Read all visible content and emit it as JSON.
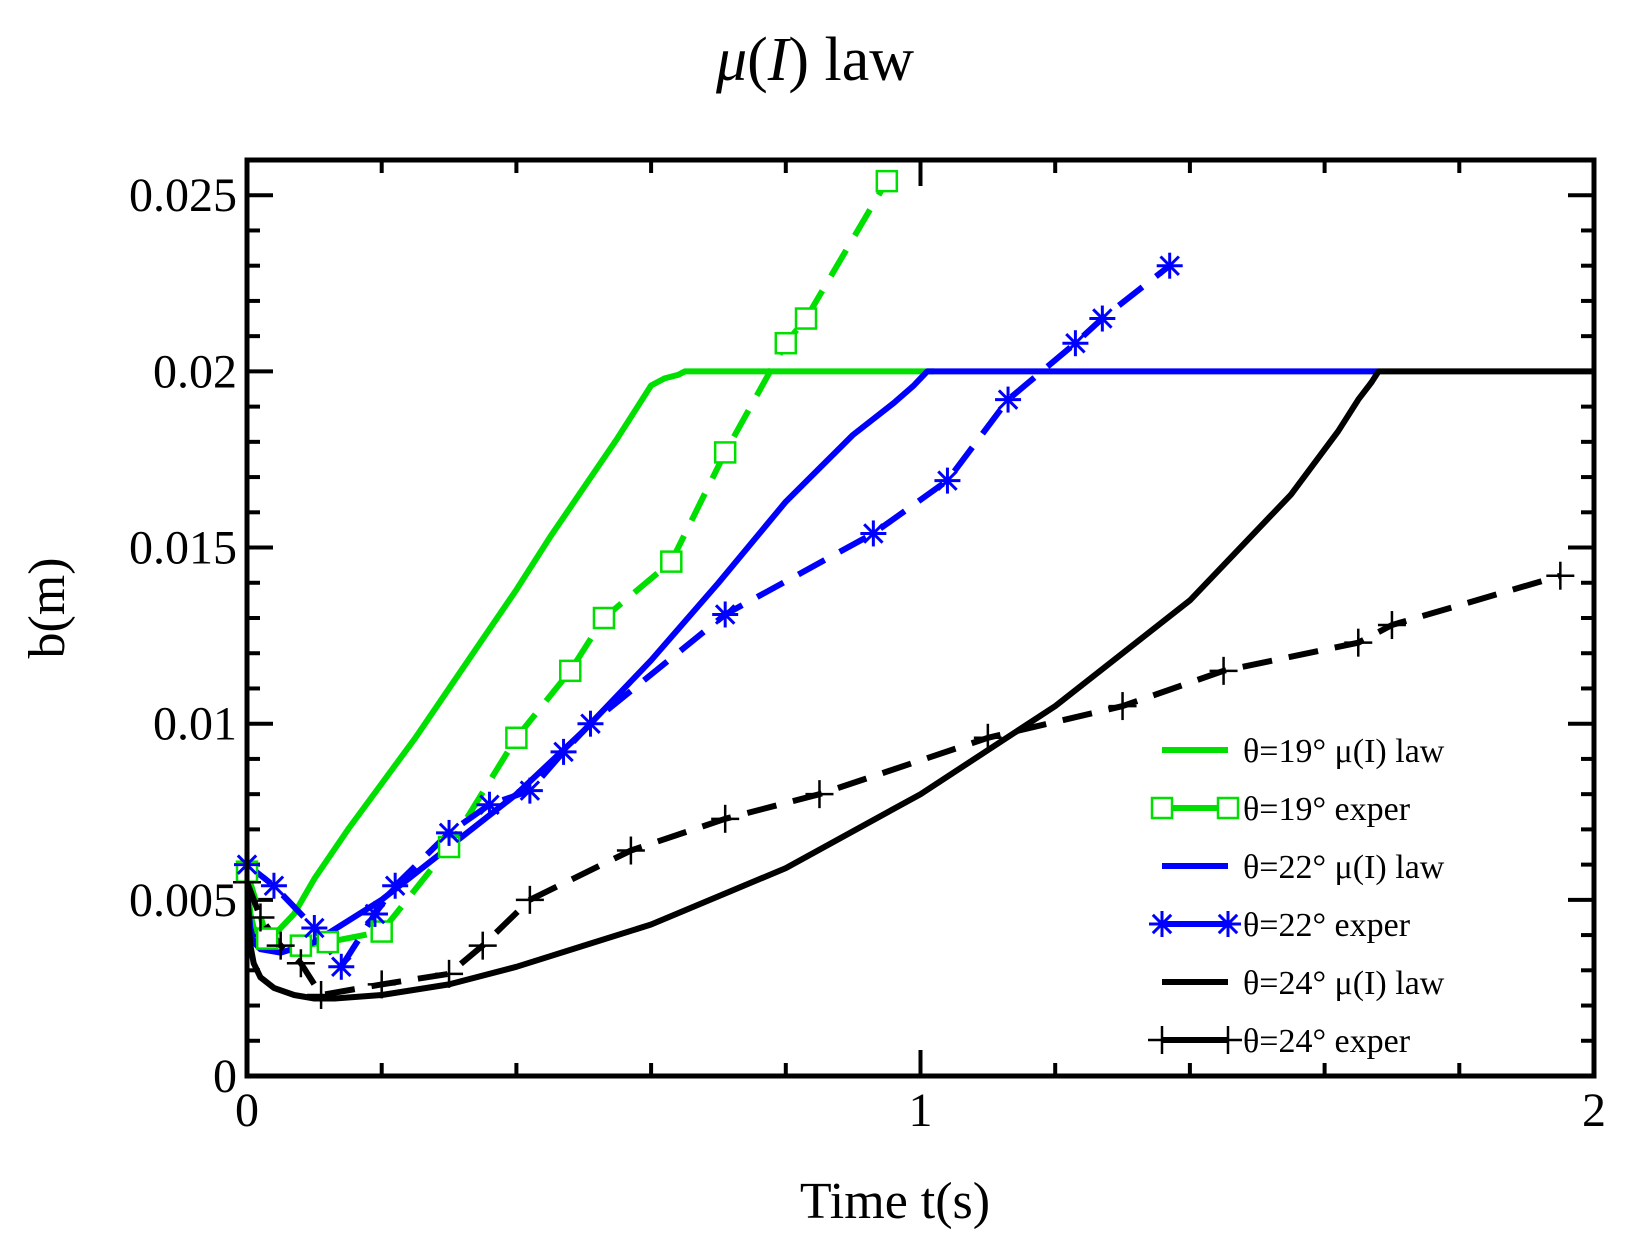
{
  "chart_data": {
    "type": "line",
    "title": "μ(I) law",
    "title_parts": [
      "μ",
      "(",
      "I",
      ")",
      " law"
    ],
    "xlabel": "Time t(s)",
    "ylabel": "b(m)",
    "xlim": [
      0,
      2
    ],
    "ylim": [
      0,
      0.026
    ],
    "xticks": [
      {
        "value": 0,
        "label": "0"
      },
      {
        "value": 1,
        "label": "1"
      },
      {
        "value": 2,
        "label": "2"
      }
    ],
    "yticks": [
      {
        "value": 0,
        "label": "0"
      },
      {
        "value": 0.005,
        "label": "0.005"
      },
      {
        "value": 0.01,
        "label": "0.01"
      },
      {
        "value": 0.015,
        "label": "0.015"
      },
      {
        "value": 0.02,
        "label": "0.02"
      },
      {
        "value": 0.025,
        "label": "0.025"
      }
    ],
    "x_minor_step": 0.2,
    "y_minor_step": 0.001,
    "grid": false,
    "legend_position": "lower-right",
    "series": [
      {
        "name": "θ=19° μ(I) law",
        "color": "#00e000",
        "dash": "solid",
        "marker": "none",
        "x": [
          0,
          0.002,
          0.005,
          0.01,
          0.02,
          0.04,
          0.07,
          0.1,
          0.15,
          0.2,
          0.25,
          0.3,
          0.35,
          0.4,
          0.45,
          0.5,
          0.55,
          0.6,
          0.62,
          0.64,
          0.65,
          1.02
        ],
        "y": [
          0.006,
          0.0052,
          0.0046,
          0.0042,
          0.004,
          0.004,
          0.0046,
          0.0056,
          0.007,
          0.0083,
          0.0096,
          0.011,
          0.0124,
          0.0138,
          0.0153,
          0.0167,
          0.0181,
          0.0196,
          0.0198,
          0.0199,
          0.02,
          0.02
        ]
      },
      {
        "name": "θ=19° exper",
        "color": "#00e000",
        "dash": "dashed",
        "marker": "square",
        "x": [
          0.0,
          0.03,
          0.08,
          0.12,
          0.2,
          0.3,
          0.4,
          0.48,
          0.53,
          0.63,
          0.71,
          0.8,
          0.83,
          0.95
        ],
        "y": [
          0.0058,
          0.0039,
          0.0037,
          0.0038,
          0.0041,
          0.0065,
          0.0096,
          0.0115,
          0.013,
          0.0146,
          0.0177,
          0.0208,
          0.0215,
          0.0254
        ]
      },
      {
        "name": "θ=22° μ(I) law",
        "color": "#0000ff",
        "dash": "solid",
        "marker": "none",
        "x": [
          0,
          0.002,
          0.005,
          0.01,
          0.02,
          0.05,
          0.1,
          0.2,
          0.3,
          0.4,
          0.5,
          0.6,
          0.7,
          0.8,
          0.9,
          0.96,
          0.99,
          1.0,
          1.01,
          1.68
        ],
        "y": [
          0.006,
          0.0048,
          0.0042,
          0.0038,
          0.0036,
          0.0035,
          0.0038,
          0.005,
          0.0065,
          0.008,
          0.0098,
          0.0118,
          0.014,
          0.0163,
          0.0182,
          0.0191,
          0.0196,
          0.0198,
          0.02,
          0.02
        ]
      },
      {
        "name": "θ=22° exper",
        "color": "#0000ff",
        "dash": "dashed",
        "marker": "asterisk",
        "x": [
          0.0,
          0.04,
          0.1,
          0.14,
          0.19,
          0.22,
          0.3,
          0.36,
          0.42,
          0.47,
          0.51,
          0.71,
          0.93,
          1.04,
          1.13,
          1.23,
          1.27,
          1.37
        ],
        "y": [
          0.006,
          0.0054,
          0.0042,
          0.0031,
          0.0046,
          0.0054,
          0.0069,
          0.0077,
          0.0081,
          0.0092,
          0.01,
          0.0131,
          0.0154,
          0.0169,
          0.0192,
          0.0208,
          0.0215,
          0.023
        ]
      },
      {
        "name": "θ=24° μ(I) law",
        "color": "#000000",
        "dash": "solid",
        "marker": "none",
        "x": [
          0,
          0.002,
          0.005,
          0.01,
          0.02,
          0.04,
          0.07,
          0.1,
          0.13,
          0.2,
          0.3,
          0.4,
          0.5,
          0.6,
          0.8,
          1.0,
          1.2,
          1.4,
          1.55,
          1.62,
          1.65,
          1.67,
          1.68,
          2.0
        ],
        "y": [
          0.006,
          0.0045,
          0.0037,
          0.0032,
          0.0028,
          0.0025,
          0.0023,
          0.0022,
          0.0022,
          0.0023,
          0.0026,
          0.0031,
          0.0037,
          0.0043,
          0.0059,
          0.008,
          0.0105,
          0.0135,
          0.0165,
          0.0183,
          0.0192,
          0.0197,
          0.02,
          0.02
        ]
      },
      {
        "name": "θ=24° exper",
        "color": "#000000",
        "dash": "dashed",
        "marker": "plus",
        "x": [
          0.0,
          0.02,
          0.05,
          0.08,
          0.11,
          0.2,
          0.3,
          0.35,
          0.42,
          0.57,
          0.71,
          0.85,
          1.1,
          1.3,
          1.45,
          1.65,
          1.7,
          1.95
        ],
        "y": [
          0.0055,
          0.0045,
          0.0037,
          0.0032,
          0.0023,
          0.0026,
          0.0029,
          0.0037,
          0.005,
          0.0064,
          0.0073,
          0.008,
          0.0096,
          0.0105,
          0.0115,
          0.0123,
          0.0128,
          0.0142
        ]
      }
    ]
  }
}
